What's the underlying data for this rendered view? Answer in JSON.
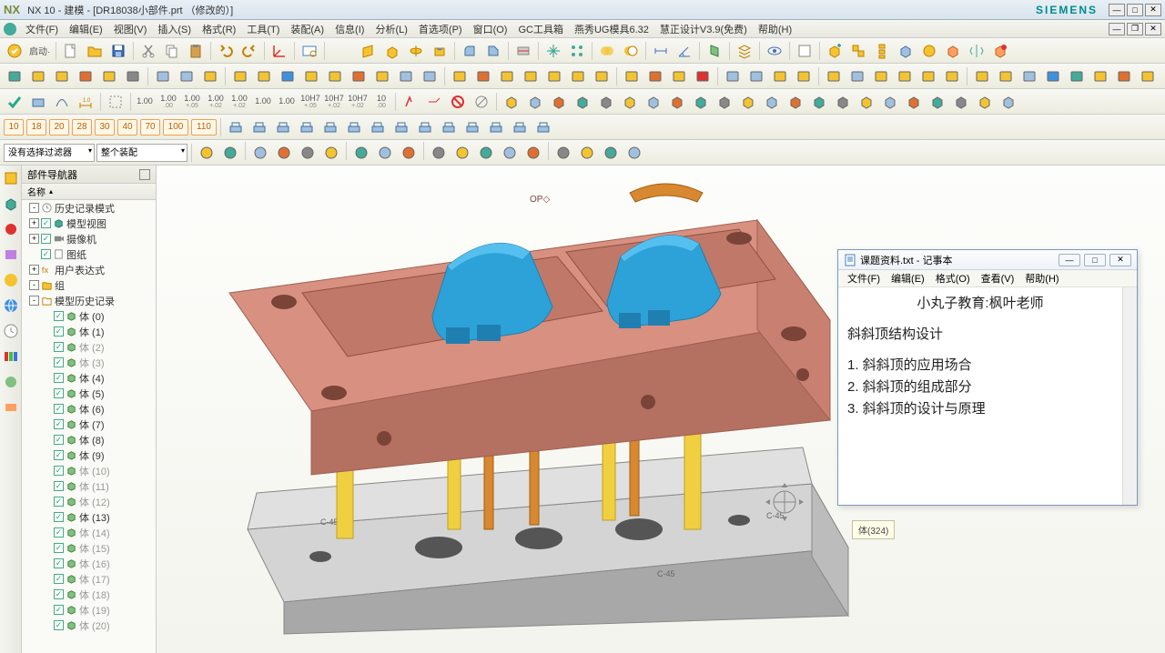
{
  "app": {
    "brand": "NX",
    "title": "NX 10 - 建模 - [DR18038小部件.prt （修改的）]",
    "siemens": "SIEMENS"
  },
  "menus": [
    "文件(F)",
    "编辑(E)",
    "视图(V)",
    "插入(S)",
    "格式(R)",
    "工具(T)",
    "装配(A)",
    "信息(I)",
    "分析(L)",
    "首选项(P)",
    "窗口(O)",
    "GC工具箱",
    "燕秀UG模具6.32",
    "慧正设计V3.9(免费)",
    "帮助(H)"
  ],
  "start_label": "启动·",
  "tolerances": [
    "1.00",
    "1.00",
    "1.00",
    "1.00",
    "1.00",
    "1.00",
    "1.00",
    "10H7",
    "10H7",
    "10H7",
    "10"
  ],
  "tol_sub": [
    "",
    ".00",
    "+.05",
    "+.02",
    "+.02",
    "",
    "",
    "+.05",
    "+.02",
    "+.02",
    ".00"
  ],
  "layers": [
    "10",
    "18",
    "20",
    "28",
    "30",
    "40",
    "70",
    "100",
    "110"
  ],
  "filter1": "没有选择过滤器",
  "filter2": "整个装配",
  "nav": {
    "title": "部件导航器",
    "col": "名称",
    "items": [
      {
        "indent": 0,
        "exp": "-",
        "chk": false,
        "ico": "clock",
        "label": "历史记录模式",
        "dim": false
      },
      {
        "indent": 0,
        "exp": "+",
        "chk": true,
        "ico": "cube-g",
        "label": "模型视图",
        "dim": false
      },
      {
        "indent": 0,
        "exp": "+",
        "chk": true,
        "ico": "cam",
        "label": "摄像机",
        "dim": false
      },
      {
        "indent": 0,
        "exp": "",
        "chk": true,
        "ico": "sheet",
        "label": "图纸",
        "dim": false
      },
      {
        "indent": 0,
        "exp": "+",
        "chk": false,
        "ico": "fx",
        "label": "用户表达式",
        "dim": false
      },
      {
        "indent": 0,
        "exp": "-",
        "chk": false,
        "ico": "folder",
        "label": "组",
        "dim": false
      },
      {
        "indent": 0,
        "exp": "-",
        "chk": false,
        "ico": "folder-o",
        "label": "模型历史记录",
        "dim": false
      },
      {
        "indent": 1,
        "exp": "",
        "chk": true,
        "ico": "body",
        "label": "体 (0)",
        "dim": false
      },
      {
        "indent": 1,
        "exp": "",
        "chk": true,
        "ico": "body",
        "label": "体 (1)",
        "dim": false
      },
      {
        "indent": 1,
        "exp": "",
        "chk": true,
        "ico": "body",
        "label": "体 (2)",
        "dim": true
      },
      {
        "indent": 1,
        "exp": "",
        "chk": true,
        "ico": "body",
        "label": "体 (3)",
        "dim": true
      },
      {
        "indent": 1,
        "exp": "",
        "chk": true,
        "ico": "body",
        "label": "体 (4)",
        "dim": false
      },
      {
        "indent": 1,
        "exp": "",
        "chk": true,
        "ico": "body",
        "label": "体 (5)",
        "dim": false
      },
      {
        "indent": 1,
        "exp": "",
        "chk": true,
        "ico": "body",
        "label": "体 (6)",
        "dim": false
      },
      {
        "indent": 1,
        "exp": "",
        "chk": true,
        "ico": "body",
        "label": "体 (7)",
        "dim": false
      },
      {
        "indent": 1,
        "exp": "",
        "chk": true,
        "ico": "body",
        "label": "体 (8)",
        "dim": false
      },
      {
        "indent": 1,
        "exp": "",
        "chk": true,
        "ico": "body",
        "label": "体 (9)",
        "dim": false
      },
      {
        "indent": 1,
        "exp": "",
        "chk": true,
        "ico": "body",
        "label": "体 (10)",
        "dim": true
      },
      {
        "indent": 1,
        "exp": "",
        "chk": true,
        "ico": "body",
        "label": "体 (11)",
        "dim": true
      },
      {
        "indent": 1,
        "exp": "",
        "chk": true,
        "ico": "body",
        "label": "体 (12)",
        "dim": true
      },
      {
        "indent": 1,
        "exp": "",
        "chk": true,
        "ico": "body",
        "label": "体 (13)",
        "dim": false
      },
      {
        "indent": 1,
        "exp": "",
        "chk": true,
        "ico": "body",
        "label": "体 (14)",
        "dim": true
      },
      {
        "indent": 1,
        "exp": "",
        "chk": true,
        "ico": "body",
        "label": "体 (15)",
        "dim": true
      },
      {
        "indent": 1,
        "exp": "",
        "chk": true,
        "ico": "body",
        "label": "体 (16)",
        "dim": true
      },
      {
        "indent": 1,
        "exp": "",
        "chk": true,
        "ico": "body",
        "label": "体 (17)",
        "dim": true
      },
      {
        "indent": 1,
        "exp": "",
        "chk": true,
        "ico": "body",
        "label": "体 (18)",
        "dim": true
      },
      {
        "indent": 1,
        "exp": "",
        "chk": true,
        "ico": "body",
        "label": "体 (19)",
        "dim": true
      },
      {
        "indent": 1,
        "exp": "",
        "chk": true,
        "ico": "body",
        "label": "体 (20)",
        "dim": true
      }
    ]
  },
  "notepad": {
    "title": "课题资料.txt - 记事本",
    "menus": [
      "文件(F)",
      "编辑(E)",
      "格式(O)",
      "查看(V)",
      "帮助(H)"
    ],
    "heading": "小丸子教育:枫叶老师",
    "topic": "斜斜顶结构设计",
    "lines": [
      "1. 斜斜顶的应用场合",
      "2. 斜斜顶的组成部分",
      "3. 斜斜顶的设计与原理"
    ]
  },
  "tooltip": "体(324)",
  "model": {
    "colors": {
      "top_block": "#d89080",
      "top_block_shadow": "#b47060",
      "blue_part": "#2da2d8",
      "blue_part_dark": "#1f7fb0",
      "base_plate": "#d4d4d4",
      "base_shadow": "#a8a8a8",
      "pillar_yellow": "#f0d040",
      "pillar_orange": "#d88830",
      "hole": "#555"
    }
  }
}
